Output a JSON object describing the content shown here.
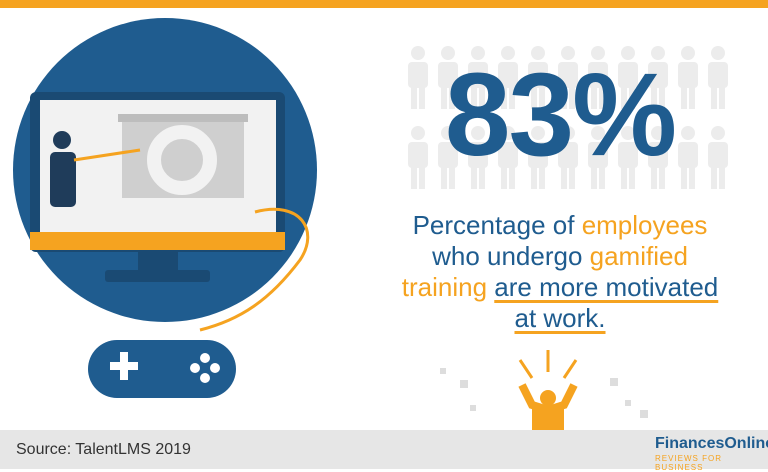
{
  "stat": {
    "value": "83%"
  },
  "description": {
    "lines": [
      [
        {
          "text": "Percentage of ",
          "style": "plain"
        },
        {
          "text": "employees",
          "style": "accent"
        }
      ],
      [
        {
          "text": "who undergo ",
          "style": "plain"
        },
        {
          "text": "gamified",
          "style": "accent"
        }
      ],
      [
        {
          "text": "training",
          "style": "accent"
        },
        {
          "text": " ",
          "style": "plain"
        },
        {
          "text": "are more motivated",
          "style": "underline"
        }
      ],
      [
        {
          "text": "at work.",
          "style": "underline"
        }
      ]
    ]
  },
  "footer": {
    "source": "Source: TalentLMS 2019",
    "brand": "FinancesOnline",
    "tagline": "REVIEWS FOR BUSINESS"
  }
}
